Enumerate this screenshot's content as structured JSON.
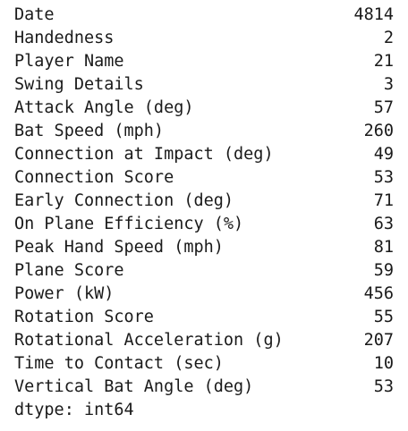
{
  "series": {
    "rows": [
      {
        "label": "Date",
        "value": "4814"
      },
      {
        "label": "Handedness",
        "value": "2"
      },
      {
        "label": "Player Name",
        "value": "21"
      },
      {
        "label": "Swing Details",
        "value": "3"
      },
      {
        "label": "Attack Angle (deg)",
        "value": "57"
      },
      {
        "label": "Bat Speed (mph)",
        "value": "260"
      },
      {
        "label": "Connection at Impact (deg)",
        "value": "49"
      },
      {
        "label": "Connection Score",
        "value": "53"
      },
      {
        "label": "Early Connection (deg)",
        "value": "71"
      },
      {
        "label": "On Plane Efficiency (%)",
        "value": "63"
      },
      {
        "label": "Peak Hand Speed (mph)",
        "value": "81"
      },
      {
        "label": "Plane Score",
        "value": "59"
      },
      {
        "label": "Power (kW)",
        "value": "456"
      },
      {
        "label": "Rotation Score",
        "value": "55"
      },
      {
        "label": "Rotational Acceleration (g)",
        "value": "207"
      },
      {
        "label": "Time to Contact (sec)",
        "value": "10"
      },
      {
        "label": "Vertical Bat Angle (deg)",
        "value": "53"
      }
    ],
    "dtype": "dtype: int64"
  }
}
